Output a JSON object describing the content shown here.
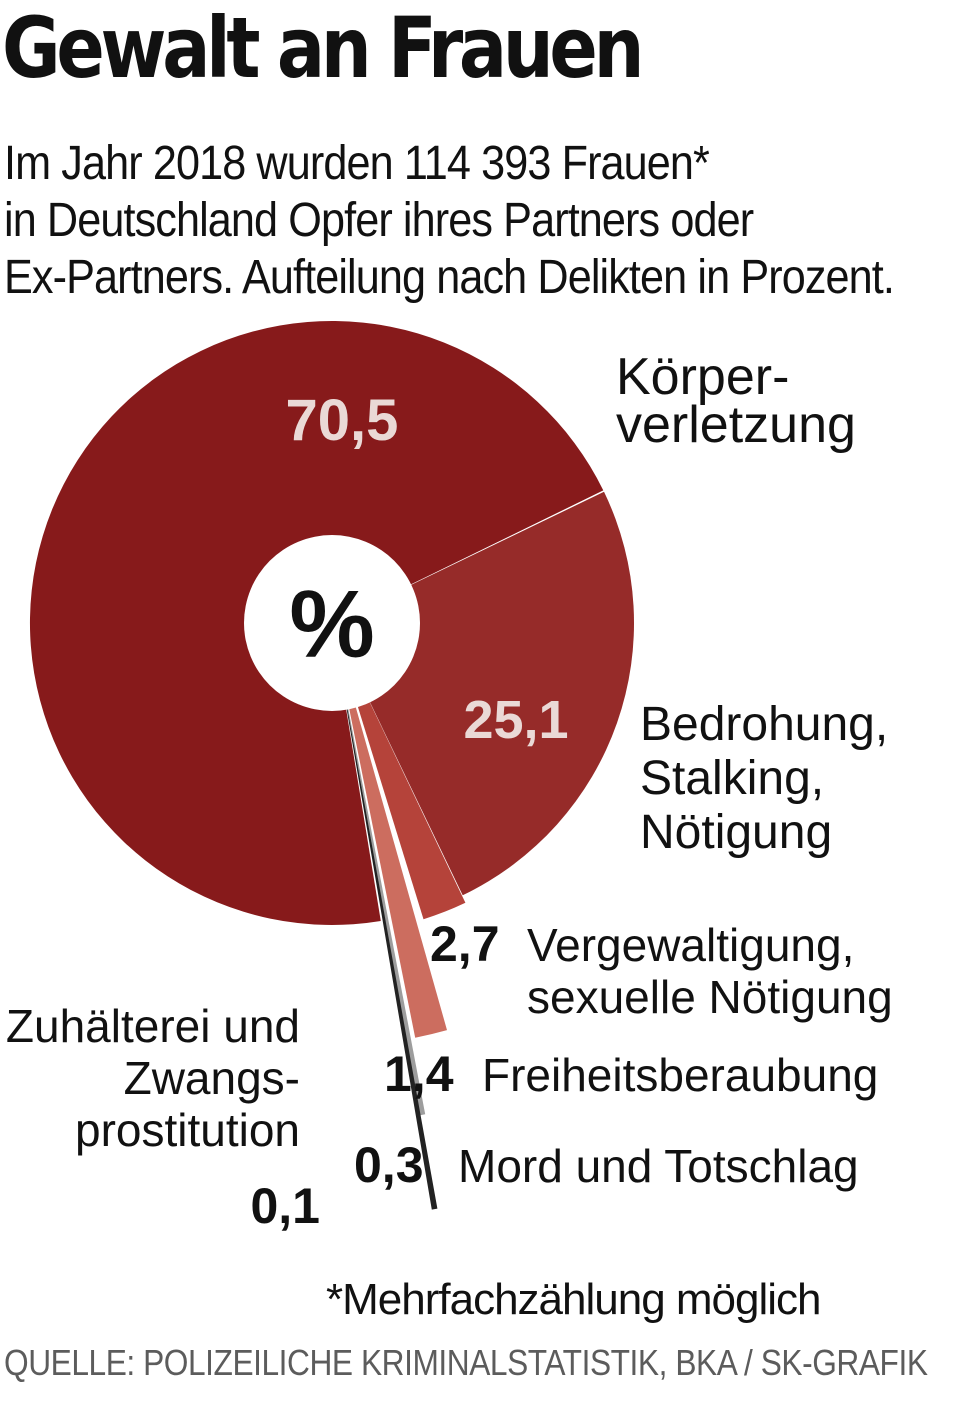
{
  "title": "Gewalt an Frauen",
  "subtitle_lines": [
    "Im Jahr 2018 wurden 114 393 Frauen*",
    "in Deutschland Opfer ihres Partners oder",
    "Ex-Partners. Aufteilung nach Delikten in Prozent."
  ],
  "center_symbol": "%",
  "chart_data": {
    "type": "pie",
    "unit": "%",
    "slices": [
      {
        "value": 70.5,
        "value_label": "70,5",
        "label_lines": [
          "Körper-",
          "verletzung"
        ],
        "color": "#871a1b"
      },
      {
        "value": 25.1,
        "value_label": "25,1",
        "label_lines": [
          "Bedrohung,",
          "Stalking,",
          "Nötigung"
        ],
        "color": "#962b29"
      },
      {
        "value": 2.7,
        "value_label": "2,7",
        "label_lines": [
          "Vergewaltigung,",
          "sexuelle Nötigung"
        ],
        "color": "#b5433a"
      },
      {
        "value": 1.4,
        "value_label": "1,4",
        "label_lines": [
          "Freiheitsberaubung"
        ],
        "color": "#cc6d5f"
      },
      {
        "value": 0.3,
        "value_label": "0,3",
        "label_lines": [
          "Mord und Totschlag"
        ],
        "color": "#9d9d9d"
      },
      {
        "value": 0.1,
        "value_label": "0,1",
        "label_lines": [
          "Zuhälterei und",
          "Zwangs-",
          "prostitution"
        ],
        "color": "#222222"
      }
    ]
  },
  "footnote": "*Mehrfachzählung möglich",
  "source": "QUELLE: POLIZEILICHE KRIMINALSTATISTIK, BKA  / SK-GRAFIK"
}
